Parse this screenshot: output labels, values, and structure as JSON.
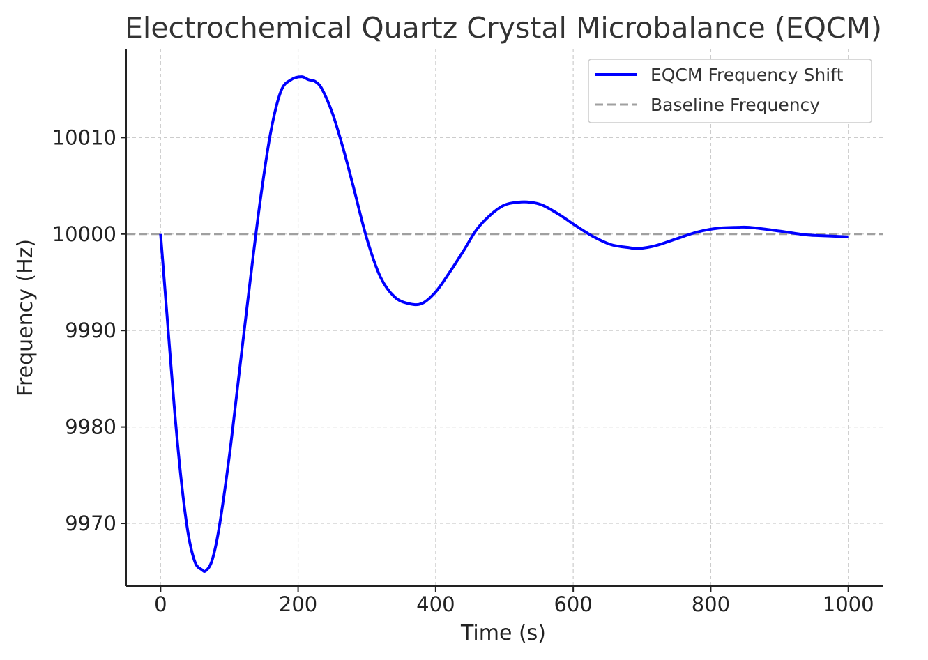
{
  "chart_data": {
    "type": "line",
    "title": "Electrochemical Quartz Crystal Microbalance (EQCM)",
    "xlabel": "Time (s)",
    "ylabel": "Frequency (Hz)",
    "xlim": [
      -50,
      1050
    ],
    "ylim": [
      9963.5,
      10019.2
    ],
    "xticks": [
      0,
      200,
      400,
      600,
      800,
      1000
    ],
    "yticks": [
      9970,
      9980,
      9990,
      10000,
      10010
    ],
    "xtick_labels": [
      "0",
      "200",
      "400",
      "600",
      "800",
      "1000"
    ],
    "ytick_labels": [
      "9970",
      "9980",
      "9990",
      "10000",
      "10010"
    ],
    "grid": true,
    "legend_position": "top-right",
    "series": [
      {
        "name": "EQCM Frequency Shift",
        "color": "#0000ff",
        "style": "solid",
        "x": [
          0,
          10,
          20,
          30,
          40,
          50,
          60,
          66,
          75,
          85,
          100,
          115,
          130,
          145,
          160,
          175,
          190,
          205,
          215,
          225,
          235,
          250,
          265,
          280,
          300,
          320,
          340,
          360,
          380,
          400,
          420,
          440,
          460,
          480,
          500,
          520,
          537,
          555,
          580,
          605,
          630,
          655,
          680,
          695,
          720,
          750,
          780,
          810,
          840,
          855,
          880,
          910,
          940,
          970,
          1000
        ],
        "y": [
          10000.0,
          9991.0,
          9982.0,
          9974.5,
          9969.0,
          9966.0,
          9965.2,
          9965.1,
          9966.2,
          9969.5,
          9977.0,
          9986.0,
          9995.0,
          10003.5,
          10010.5,
          10014.8,
          10016.0,
          10016.3,
          10016.0,
          10015.8,
          10015.0,
          10012.5,
          10009.0,
          10005.0,
          9999.5,
          9995.5,
          9993.5,
          9992.8,
          9992.8,
          9994.0,
          9996.0,
          9998.2,
          10000.5,
          10002.0,
          10003.0,
          10003.3,
          10003.3,
          10003.0,
          10002.0,
          10000.8,
          9999.7,
          9998.9,
          9998.6,
          9998.5,
          9998.8,
          9999.5,
          10000.2,
          10000.6,
          10000.7,
          10000.7,
          10000.5,
          10000.2,
          9999.9,
          9999.8,
          9999.7
        ]
      },
      {
        "name": "Baseline Frequency",
        "color": "#a0a0a0",
        "style": "dashed",
        "y_constant": 10000
      }
    ]
  }
}
